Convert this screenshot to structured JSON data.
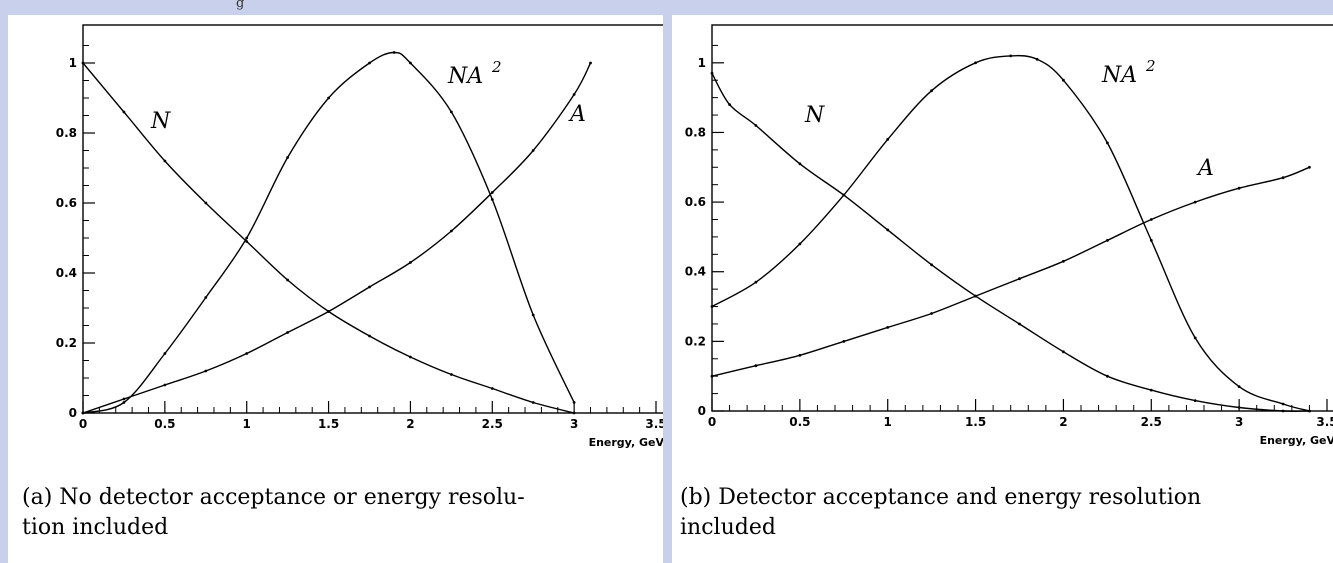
{
  "top_fragment": "g",
  "chart_data": [
    {
      "type": "line",
      "title": "",
      "xlabel": "Energy, GeV",
      "ylabel": "",
      "xlim": [
        0,
        3.5
      ],
      "ylim": [
        0,
        1.1
      ],
      "x_ticks": [
        "0",
        "0.5",
        "1",
        "1.5",
        "2",
        "2.5",
        "3",
        "3.5"
      ],
      "y_ticks": [
        "0",
        "0.2",
        "0.4",
        "0.6",
        "0.8",
        "1"
      ],
      "grid": false,
      "series": [
        {
          "name": "N",
          "x": [
            0,
            0.25,
            0.5,
            0.75,
            1.0,
            1.25,
            1.5,
            1.75,
            2.0,
            2.25,
            2.5,
            2.75,
            3.0
          ],
          "values": [
            1.0,
            0.86,
            0.72,
            0.6,
            0.49,
            0.38,
            0.29,
            0.22,
            0.16,
            0.11,
            0.07,
            0.03,
            0.0
          ]
        },
        {
          "name": "A",
          "x": [
            0,
            0.25,
            0.5,
            0.75,
            1.0,
            1.25,
            1.5,
            1.75,
            2.0,
            2.25,
            2.5,
            2.75,
            3.0,
            3.1
          ],
          "values": [
            0.0,
            0.04,
            0.08,
            0.12,
            0.17,
            0.23,
            0.29,
            0.36,
            0.43,
            0.52,
            0.63,
            0.75,
            0.91,
            1.0
          ]
        },
        {
          "name": "NA2",
          "x": [
            0,
            0.25,
            0.5,
            0.75,
            1.0,
            1.25,
            1.5,
            1.75,
            1.9,
            2.0,
            2.25,
            2.5,
            2.75,
            3.0
          ],
          "values": [
            0.0,
            0.03,
            0.17,
            0.33,
            0.5,
            0.73,
            0.9,
            1.0,
            1.03,
            1.0,
            0.86,
            0.61,
            0.28,
            0.03
          ]
        }
      ],
      "annotations": [
        "N",
        "A",
        "NA",
        "2"
      ],
      "caption_line1": "(a) No detector acceptance or energy resolu-",
      "caption_line2": "tion included"
    },
    {
      "type": "line",
      "title": "",
      "xlabel": "Energy, GeV",
      "ylabel": "",
      "xlim": [
        0,
        3.5
      ],
      "ylim": [
        0,
        1.1
      ],
      "x_ticks": [
        "0",
        "0.5",
        "1",
        "1.5",
        "2",
        "2.5",
        "3",
        "3.5"
      ],
      "y_ticks": [
        "0",
        "0.2",
        "0.4",
        "0.6",
        "0.8",
        "1"
      ],
      "grid": false,
      "series": [
        {
          "name": "N",
          "x": [
            0,
            0.1,
            0.25,
            0.5,
            0.75,
            1.0,
            1.25,
            1.5,
            1.75,
            2.0,
            2.25,
            2.5,
            2.75,
            3.0,
            3.25,
            3.4
          ],
          "values": [
            0.97,
            0.88,
            0.82,
            0.71,
            0.62,
            0.52,
            0.42,
            0.33,
            0.25,
            0.17,
            0.1,
            0.06,
            0.03,
            0.01,
            0.0,
            0.0
          ]
        },
        {
          "name": "A",
          "x": [
            0,
            0.25,
            0.5,
            0.75,
            1.0,
            1.25,
            1.5,
            1.75,
            2.0,
            2.25,
            2.5,
            2.75,
            3.0,
            3.25,
            3.4
          ],
          "values": [
            0.1,
            0.13,
            0.16,
            0.2,
            0.24,
            0.28,
            0.33,
            0.38,
            0.43,
            0.49,
            0.55,
            0.6,
            0.64,
            0.67,
            0.7
          ]
        },
        {
          "name": "NA2",
          "x": [
            0,
            0.25,
            0.5,
            0.75,
            1.0,
            1.25,
            1.5,
            1.7,
            1.85,
            2.0,
            2.25,
            2.5,
            2.75,
            3.0,
            3.25,
            3.4
          ],
          "values": [
            0.3,
            0.37,
            0.48,
            0.62,
            0.78,
            0.92,
            1.0,
            1.02,
            1.01,
            0.95,
            0.77,
            0.49,
            0.21,
            0.07,
            0.02,
            0.0
          ]
        }
      ],
      "annotations": [
        "N",
        "A",
        "NA",
        "2"
      ],
      "caption_line1": "(b) Detector acceptance and energy resolution",
      "caption_line2": "included"
    }
  ]
}
